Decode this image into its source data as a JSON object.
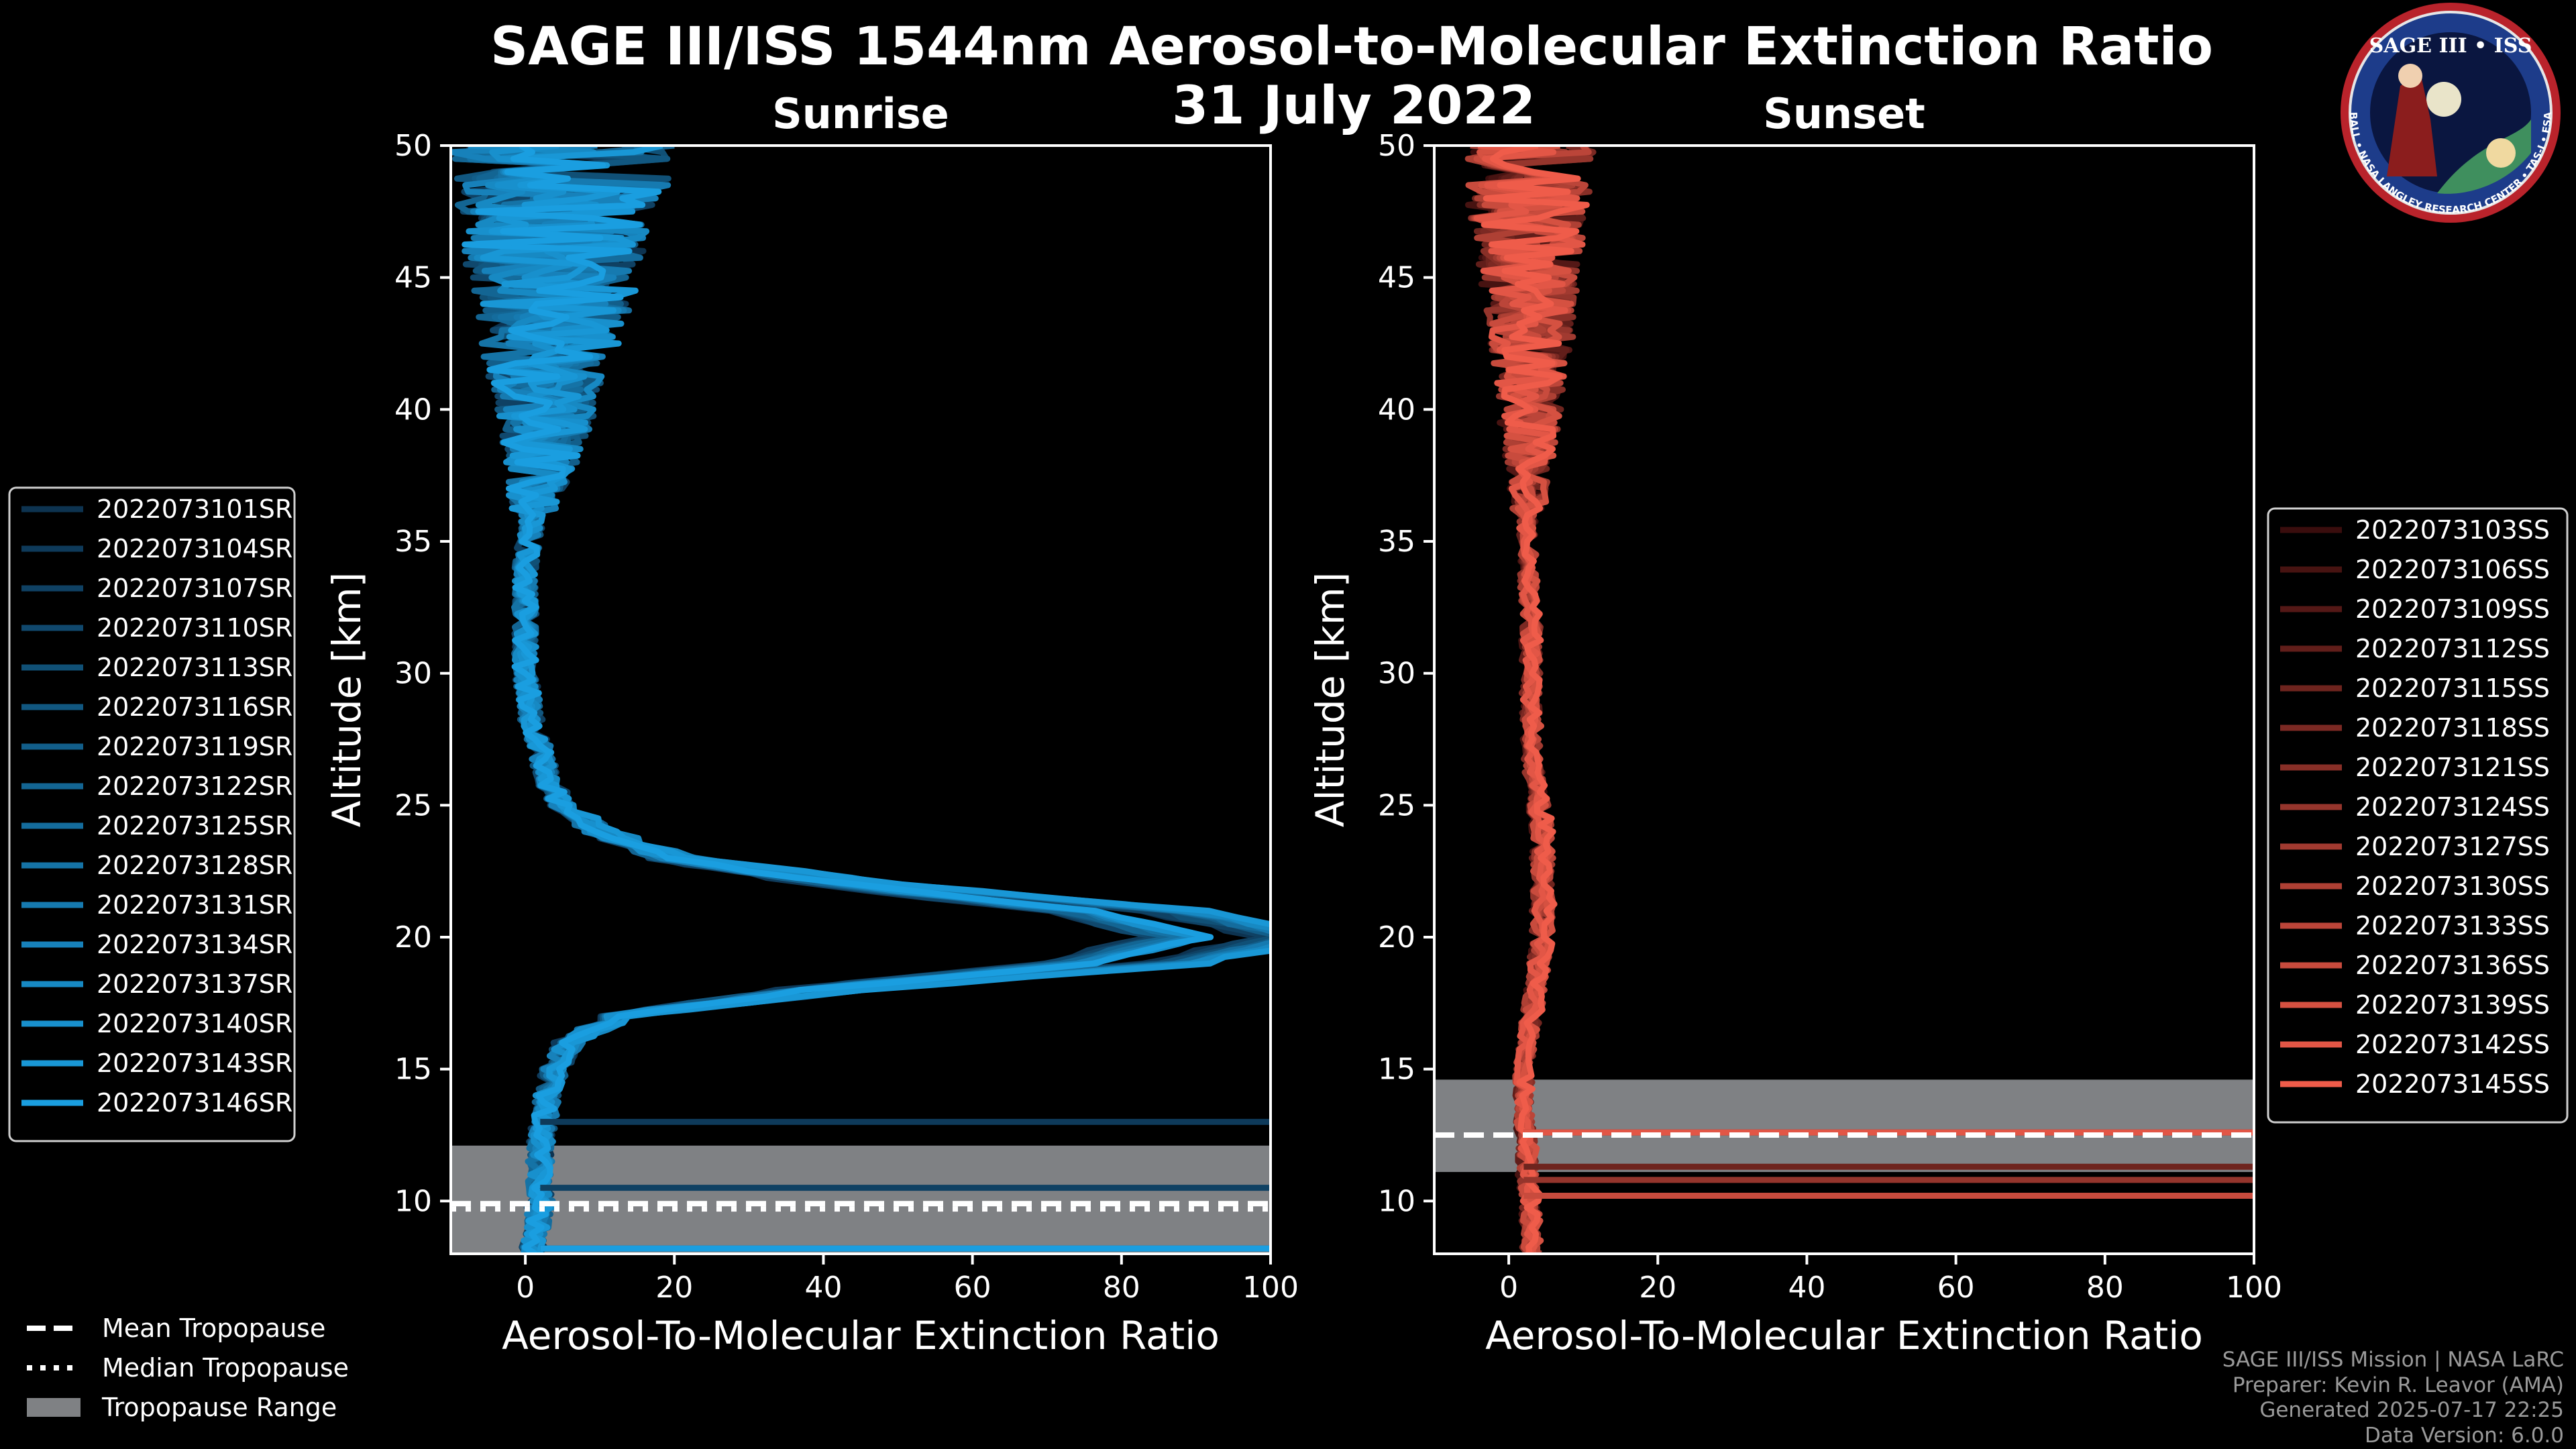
{
  "figure": {
    "title_line1": "SAGE III/ISS 1544nm Aerosol-to-Molecular Extinction Ratio",
    "title_line2": "31 July 2022"
  },
  "logo": {
    "text_top": "SAGE III • ISS",
    "text_ring": "BALL • NASA LANGLEY RESEARCH CENTER • TAS-I • ESA"
  },
  "footer": {
    "line1": "SAGE III/ISS Mission | NASA LaRC",
    "line2": "Preparer: Kevin R. Leavor (AMA)",
    "line3": "Generated 2025-07-17 22:25",
    "line4": "Data Version: 6.0.0"
  },
  "bottom_legend": [
    {
      "label": "Mean Tropopause",
      "style": "dashed"
    },
    {
      "label": "Median Tropopause",
      "style": "dotted"
    },
    {
      "label": "Tropopause Range",
      "style": "patch"
    }
  ],
  "colors": {
    "background": "#000000",
    "sunrise_dark": "#0d3350",
    "sunrise_light": "#1a9ee0",
    "sunset_dark": "#3a0d0d",
    "sunset_light": "#ef5c4a",
    "tropopause_band": "#7f8184"
  },
  "chart_data": [
    {
      "type": "line",
      "title": "Sunrise",
      "xlabel": "Aerosol-To-Molecular Extinction Ratio",
      "ylabel": "Altitude [km]",
      "xlim": [
        -10,
        100
      ],
      "ylim": [
        8,
        50
      ],
      "xticks": [
        0,
        20,
        40,
        60,
        80,
        100
      ],
      "yticks": [
        10,
        15,
        20,
        25,
        30,
        35,
        40,
        45,
        50
      ],
      "tropopause": {
        "mean": 9.9,
        "median": 9.7,
        "range": [
          8,
          12.1
        ]
      },
      "legend_position": "left",
      "series_names": [
        "2022073101SR",
        "2022073104SR",
        "2022073107SR",
        "2022073110SR",
        "2022073113SR",
        "2022073116SR",
        "2022073119SR",
        "2022073122SR",
        "2022073125SR",
        "2022073128SR",
        "2022073131SR",
        "2022073134SR",
        "2022073137SR",
        "2022073140SR",
        "2022073143SR",
        "2022073146SR"
      ],
      "profile": {
        "altitude": [
          8,
          9,
          10,
          11,
          12,
          13,
          14,
          15,
          16,
          17,
          18,
          19,
          20,
          21,
          22,
          23,
          24,
          25,
          26,
          27,
          28,
          30,
          32,
          34,
          36,
          38,
          40,
          42,
          44,
          46,
          48,
          50
        ],
        "ratio": [
          1,
          1.5,
          2,
          2,
          2,
          2.5,
          3,
          4,
          6,
          12,
          40,
          80,
          95,
          80,
          45,
          20,
          10,
          5,
          3,
          2,
          1,
          0,
          0,
          0,
          1,
          2,
          3,
          3,
          4,
          4,
          5,
          5
        ]
      },
      "outliers": [
        {
          "series": "2022073104SR",
          "altitude": 13.0,
          "ratio": 100
        },
        {
          "series": "2022073107SR",
          "altitude": 10.5,
          "ratio": 100
        },
        {
          "series": "2022073110SR",
          "altitude": 8.2,
          "ratio": 100
        },
        {
          "series": "2022073146SR",
          "altitude": 8.2,
          "ratio": 100
        }
      ]
    },
    {
      "type": "line",
      "title": "Sunset",
      "xlabel": "Aerosol-To-Molecular Extinction Ratio",
      "ylabel": "Altitude [km]",
      "xlim": [
        -10,
        100
      ],
      "ylim": [
        8,
        50
      ],
      "xticks": [
        0,
        20,
        40,
        60,
        80,
        100
      ],
      "yticks": [
        10,
        15,
        20,
        25,
        30,
        35,
        40,
        45,
        50
      ],
      "tropopause": {
        "mean": 12.5,
        "median": 12.5,
        "range": [
          11.1,
          14.6
        ]
      },
      "legend_position": "right",
      "series_names": [
        "2022073103SS",
        "2022073106SS",
        "2022073109SS",
        "2022073112SS",
        "2022073115SS",
        "2022073118SS",
        "2022073121SS",
        "2022073124SS",
        "2022073127SS",
        "2022073130SS",
        "2022073133SS",
        "2022073136SS",
        "2022073139SS",
        "2022073142SS",
        "2022073145SS"
      ],
      "profile": {
        "altitude": [
          8,
          9,
          10,
          11,
          12,
          13,
          14,
          15,
          16,
          17,
          18,
          19,
          20,
          21,
          22,
          23,
          24,
          25,
          26,
          27,
          28,
          30,
          32,
          34,
          36,
          38,
          40,
          42,
          44,
          46,
          48,
          50
        ],
        "ratio": [
          3,
          3,
          3,
          2.5,
          2.5,
          2,
          2,
          2,
          2.5,
          3,
          3.5,
          4,
          4.5,
          4.5,
          4.5,
          4.5,
          4.5,
          4,
          3.5,
          3,
          3,
          3,
          3,
          2.5,
          2.5,
          2.5,
          3,
          3,
          3,
          3,
          2.5,
          3
        ]
      },
      "outliers": [
        {
          "series": "2022073109SS",
          "altitude": 12.6,
          "ratio": 100
        },
        {
          "series": "2022073115SS",
          "altitude": 11.3,
          "ratio": 100
        },
        {
          "series": "2022073124SS",
          "altitude": 10.8,
          "ratio": 100
        },
        {
          "series": "2022073136SS",
          "altitude": 10.2,
          "ratio": 100
        },
        {
          "series": "2022073142SS",
          "altitude": 12.6,
          "ratio": 100
        }
      ]
    }
  ]
}
